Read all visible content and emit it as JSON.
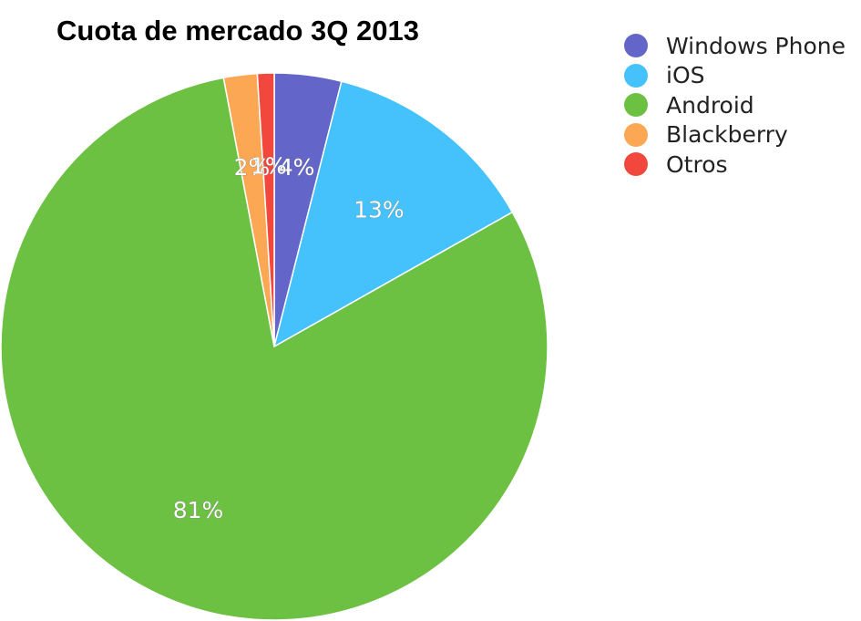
{
  "chart_data": {
    "type": "pie",
    "title": "Cuota de mercado 3Q 2013",
    "legend_position": "top-right",
    "slices": [
      {
        "name": "Windows Phone",
        "value": 4,
        "label": "4%",
        "color": "#6366c8"
      },
      {
        "name": "iOS",
        "value": 13,
        "label": "13%",
        "color": "#45c2fb"
      },
      {
        "name": "Android",
        "value": 81,
        "label": "81%",
        "color": "#6cc142"
      },
      {
        "name": "Blackberry",
        "value": 2,
        "label": "2%",
        "color": "#fba754"
      },
      {
        "name": "Otros",
        "value": 1,
        "label": "1%",
        "color": "#f2473c"
      }
    ]
  }
}
